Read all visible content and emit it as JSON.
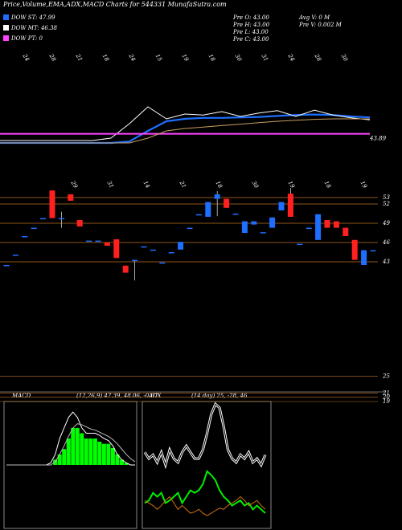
{
  "header": {
    "title": "Price,Volume,EMA,ADX,MACD Charts for 544331 MunafaSutra.com",
    "ohlc": [
      "Pre  O: 43.00",
      "Pre  H: 43.00",
      "Pre  L: 43.00",
      "Pre  C: 43.00"
    ],
    "stats": [
      "Avg V: 0  M",
      "Pre  V: 0.002  M"
    ]
  },
  "chart_data": [
    {
      "type": "line",
      "ylim": [
        40,
        50
      ],
      "pt_value": 43.89,
      "date_labels": [
        "24",
        "28",
        "21",
        "18",
        "24",
        "15",
        "19",
        "18",
        "30",
        "31",
        "24",
        "28",
        "30"
      ],
      "series": [
        {
          "name": "DOW ST: 47.99",
          "color": "#1e6fff",
          "values": [
            42,
            42,
            42,
            42,
            42,
            42,
            42,
            42.3,
            44.5,
            46.5,
            47,
            47.2,
            47.2,
            47.3,
            47.4,
            47.6,
            47.8,
            47.9,
            47.8,
            47.5,
            47.3
          ]
        },
        {
          "name": "DOW MT: 46.38",
          "color": "#ffffff",
          "values": [
            42.5,
            42.5,
            42.5,
            42.5,
            42.5,
            42.5,
            43,
            46,
            49.5,
            47,
            48,
            47.8,
            48.5,
            47.5,
            48.2,
            48.7,
            47.5,
            48.8,
            47.8,
            47.2,
            46.8
          ]
        },
        {
          "name": "DOW PT: 0",
          "color": "#ff44ff",
          "values": [
            43.89,
            43.89,
            43.89,
            43.89,
            43.89,
            43.89,
            43.89,
            43.89,
            43.89,
            43.89,
            43.89,
            43.89,
            43.89,
            43.89,
            43.89,
            43.89,
            43.89,
            43.89,
            43.89,
            43.89,
            43.89
          ]
        },
        {
          "color": "#c8a060",
          "values": [
            42,
            42,
            42,
            42,
            42,
            42,
            42,
            42,
            43,
            44.5,
            45,
            45.3,
            45.6,
            45.9,
            46.2,
            46.5,
            46.7,
            46.9,
            47,
            47,
            47
          ]
        }
      ]
    },
    {
      "type": "candlestick",
      "ylim": [
        38,
        56
      ],
      "yticks": [
        53,
        52,
        49,
        46,
        43
      ],
      "grid": true,
      "up_color": "#1e6fff",
      "down_color": "#ff2020",
      "grid_color": "#c07020",
      "date_labels": [
        "29",
        "31",
        "14",
        "21",
        "18",
        "30",
        "19",
        "18",
        "19"
      ],
      "open": [
        42.5,
        44.1,
        47,
        48.3,
        49.8,
        54.1,
        49.8,
        53.5,
        49.5,
        46.3,
        46.3,
        46,
        46.5,
        42.4,
        43.3,
        45.4,
        44.9,
        42.9,
        44.5,
        44.9,
        48.3,
        50.4,
        50,
        52.8,
        52.8,
        50.5,
        47.5,
        48.8,
        47.6,
        48.3,
        51,
        53.6,
        45.8,
        48.3,
        46.4,
        49.5,
        49.3,
        48.3,
        46.4,
        42.5,
        44.8
      ],
      "high": [
        42.5,
        44.1,
        47,
        48.3,
        49.8,
        54.1,
        50.8,
        53.5,
        49.5,
        46.3,
        46.3,
        46,
        46.5,
        42.4,
        43.3,
        45.4,
        44.9,
        42.9,
        44.5,
        46.1,
        48.3,
        50.4,
        52.3,
        54,
        52.8,
        50.5,
        49.3,
        49.3,
        47.6,
        49.9,
        52.3,
        54.5,
        45.8,
        48.3,
        50.4,
        49.5,
        49.3,
        48.3,
        46.4,
        44.8,
        44.8
      ],
      "low": [
        42.5,
        44.1,
        47,
        48.3,
        49.8,
        49.8,
        48.3,
        52.5,
        48.5,
        46.3,
        46.3,
        45.5,
        43.6,
        41.3,
        40.1,
        45.4,
        44.9,
        42.9,
        44.5,
        44.9,
        48.3,
        50.4,
        50,
        50.1,
        51.4,
        50.5,
        47.5,
        48.8,
        47.6,
        48.3,
        51,
        50,
        45.8,
        48.3,
        46.4,
        48.3,
        48.3,
        47,
        43.3,
        42.5,
        44.8
      ],
      "close": [
        42.5,
        44.1,
        47,
        48.3,
        49.8,
        49.8,
        49.8,
        52.5,
        48.5,
        46.3,
        46.3,
        45.5,
        43.6,
        41.3,
        43.3,
        45.4,
        44.9,
        42.9,
        44.5,
        46.1,
        48.3,
        50.4,
        52.3,
        53.5,
        51.4,
        50.5,
        49.3,
        49.3,
        47.6,
        49.9,
        52.3,
        50,
        45.8,
        48.3,
        50.4,
        48.3,
        48.3,
        47,
        43.3,
        44.8,
        44.8
      ]
    },
    {
      "type": "bar",
      "ylim": [
        19,
        26
      ],
      "yticks": [
        25,
        21,
        20,
        19
      ],
      "values": []
    },
    {
      "type": "macd",
      "title": "MACD",
      "subtitle": "(12,26,9) 47.39, 48.06, -0.67",
      "ylim": [
        -6,
        6
      ],
      "series": [
        {
          "color": "#00ff00",
          "values": [
            0,
            0,
            0,
            0,
            0,
            0,
            0,
            0,
            0,
            0,
            0,
            0.5,
            1,
            1.5,
            2.5,
            3.5,
            3.5,
            3,
            2.5,
            2.5,
            2.5,
            2.2,
            2,
            2,
            1.6,
            1,
            0.5,
            0.2,
            0,
            0
          ]
        },
        {
          "color": "#ffffff",
          "values": [
            0,
            0,
            0,
            0,
            0,
            0,
            0,
            0,
            0,
            0,
            0.2,
            1,
            2.5,
            3.5,
            4.5,
            5,
            4.5,
            3.5,
            3,
            3,
            3,
            2.8,
            2.5,
            2.3,
            1.8,
            1,
            0.5,
            0.2,
            0,
            0
          ]
        },
        {
          "color": "#bbbbbb",
          "values": [
            0,
            0,
            0,
            0,
            0,
            0,
            0,
            0,
            0,
            0,
            0,
            0.3,
            1,
            1.8,
            2.7,
            3.5,
            3.9,
            3.8,
            3.6,
            3.4,
            3.3,
            3.1,
            2.9,
            2.7,
            2.4,
            2,
            1.5,
            1,
            0.6,
            0.3
          ]
        }
      ]
    },
    {
      "type": "adx",
      "title": "ADX",
      "subtitle": "(14  day) 25,  -28,  46",
      "ylim": [
        0,
        100
      ],
      "series": [
        {
          "color": "#ffffff",
          "values": [
            60,
            55,
            58,
            52,
            60,
            50,
            62,
            55,
            52,
            60,
            65,
            60,
            55,
            55,
            62,
            75,
            90,
            98,
            95,
            80,
            62,
            55,
            52,
            58,
            55,
            60,
            52,
            55,
            50,
            58
          ]
        },
        {
          "color": "#00ee00",
          "values": [
            20,
            22,
            28,
            25,
            28,
            20,
            22,
            25,
            28,
            20,
            25,
            30,
            28,
            30,
            35,
            45,
            42,
            38,
            30,
            25,
            22,
            18,
            20,
            22,
            18,
            20,
            15,
            18,
            15,
            12
          ]
        },
        {
          "color": "#d07010",
          "values": [
            22,
            20,
            18,
            15,
            18,
            22,
            25,
            20,
            15,
            18,
            15,
            12,
            13,
            15,
            12,
            10,
            12,
            14,
            16,
            15,
            18,
            20,
            22,
            25,
            22,
            18,
            20,
            22,
            18,
            15
          ]
        }
      ]
    }
  ]
}
